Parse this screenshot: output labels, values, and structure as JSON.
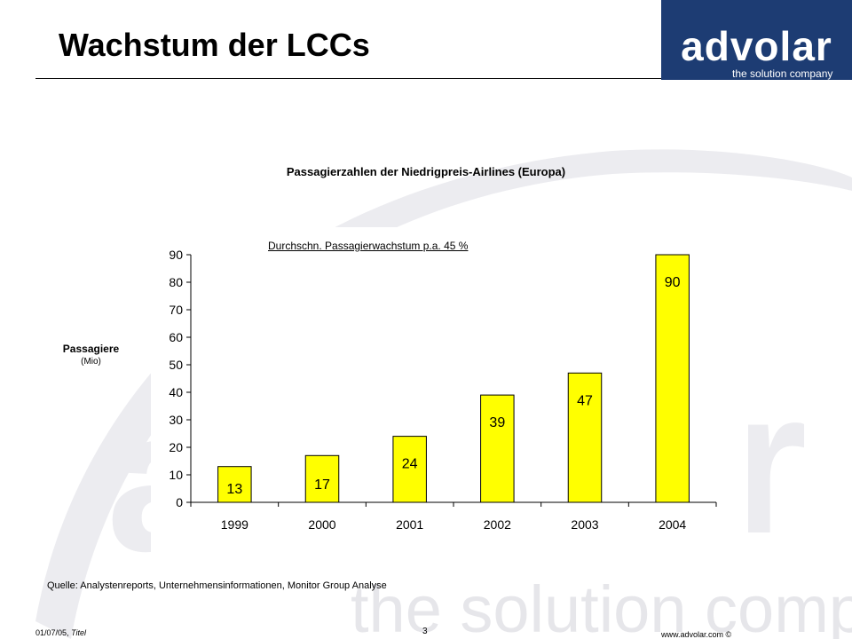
{
  "header": {
    "title": "Wachstum der LCCs",
    "logo_word": "advolar",
    "logo_tagline": "the solution company"
  },
  "watermark": {
    "text": "the solution company",
    "color": "#e9e9ed"
  },
  "chart_heading": "Passagierzahlen der Niedrigpreis-Airlines (Europa)",
  "y_axis_label": {
    "main": "Passagiere",
    "unit": "(Mio)"
  },
  "annotation": "Durchschn. Passagierwachstum p.a. 45 %",
  "chart_data": {
    "type": "bar",
    "title": "Passagierzahlen der Niedrigpreis-Airlines (Europa)",
    "xlabel": "",
    "ylabel": "Passagiere (Mio)",
    "categories": [
      "1999",
      "2000",
      "2001",
      "2002",
      "2003",
      "2004"
    ],
    "values": [
      13,
      17,
      24,
      39,
      47,
      90
    ],
    "data_labels": [
      "13",
      "17",
      "24",
      "39",
      "47",
      "90"
    ],
    "ylim": [
      0,
      90
    ],
    "yticks": [
      0,
      10,
      20,
      30,
      40,
      50,
      60,
      70,
      80,
      90
    ],
    "bar_color": "#ffff00",
    "bar_outline": "#000000",
    "grid": false,
    "legend": "none"
  },
  "source": "Quelle: Analystenreports, Unternehmensinformationen, Monitor Group Analyse",
  "footer": {
    "date": "01/07/05,",
    "doc_title": "Titel",
    "page": "3",
    "url": "www.advolar.com ©"
  },
  "colors": {
    "brand_navy": "#1d3c73"
  }
}
